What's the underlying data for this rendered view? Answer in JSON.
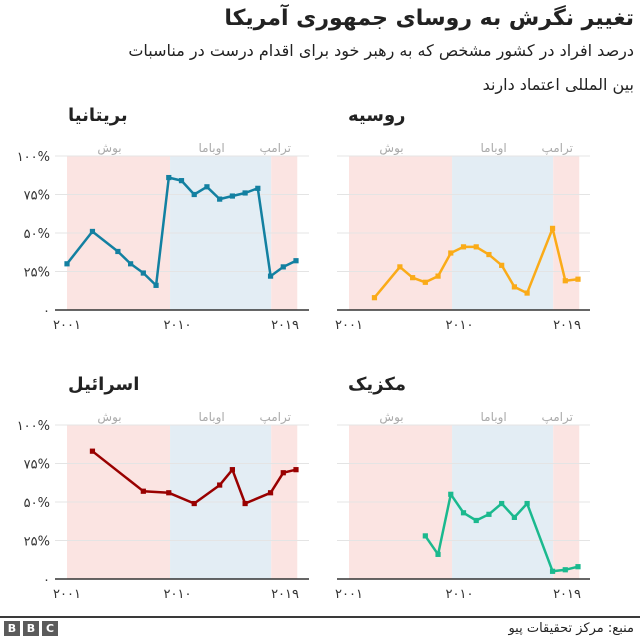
{
  "header": {
    "title": "تغییر نگرش به روسای جمهوری آمریکا",
    "subtitle_line1": "درصد افراد در کشور مشخص که به رهبر خود برای اقدام درست در مناسبات",
    "subtitle_line2": "بین المللی اعتماد دارند"
  },
  "footer": {
    "source": "منبع: مرکز تحقیقات پیو",
    "logo_letters": [
      "B",
      "B",
      "C"
    ]
  },
  "colors": {
    "republican_period": "#fbe4e2",
    "democrat_period": "#e3edf4",
    "gridline": "#e4e4e4",
    "baseline": "#333333",
    "period_label": "#aaaaaa",
    "axis_label": "#333333"
  },
  "chart_data": [
    {
      "type": "line",
      "title": "بریتانیا",
      "xlabel": "",
      "ylabel": "",
      "xlim": [
        2001,
        2019
      ],
      "ylim": [
        0,
        100
      ],
      "grid": true,
      "yticks": [
        0,
        25,
        50,
        75,
        100
      ],
      "ytick_labels": [
        "۰",
        "۲۵%",
        "۵۰%",
        "۷۵%",
        "۱۰۰%"
      ],
      "xticks": [
        2001,
        2010,
        2019
      ],
      "xtick_labels": [
        "۲۰۰۱",
        "۲۰۱۰",
        "۲۰۱۹"
      ],
      "periods": [
        {
          "label": "بوش",
          "start": 2001,
          "end": 2009.1,
          "color": "#fbe4e2"
        },
        {
          "label": "اوباما",
          "start": 2009.1,
          "end": 2017.05,
          "color": "#e3edf4"
        },
        {
          "label": "ترامپ",
          "start": 2017.05,
          "end": 2019.1,
          "color": "#fbe4e2"
        }
      ],
      "series": [
        {
          "name": "بریتانیا",
          "color": "#1380a1",
          "x": [
            2001,
            2003,
            2005,
            2006,
            2007,
            2008,
            2009,
            2010,
            2011,
            2012,
            2013,
            2014,
            2015,
            2016,
            2017,
            2018,
            2019
          ],
          "values": [
            30,
            51,
            38,
            30,
            24,
            16,
            86,
            84,
            75,
            80,
            72,
            74,
            76,
            79,
            22,
            28,
            32
          ]
        }
      ]
    },
    {
      "type": "line",
      "title": "روسیه",
      "xlabel": "",
      "ylabel": "",
      "xlim": [
        2001,
        2019
      ],
      "ylim": [
        0,
        100
      ],
      "grid": true,
      "yticks": [
        0,
        25,
        50,
        75,
        100
      ],
      "ytick_labels": [],
      "xticks": [
        2001,
        2010,
        2019
      ],
      "xtick_labels": [
        "۲۰۰۱",
        "۲۰۱۰",
        "۲۰۱۹"
      ],
      "periods": [
        {
          "label": "بوش",
          "start": 2001,
          "end": 2009.1,
          "color": "#fbe4e2"
        },
        {
          "label": "اوباما",
          "start": 2009.1,
          "end": 2017.05,
          "color": "#e3edf4"
        },
        {
          "label": "ترامپ",
          "start": 2017.05,
          "end": 2019.1,
          "color": "#fbe4e2"
        }
      ],
      "series": [
        {
          "name": "روسیه",
          "color": "#faab18",
          "x": [
            2003,
            2005,
            2006,
            2007,
            2008,
            2009,
            2010,
            2011,
            2012,
            2013,
            2014,
            2015,
            2017,
            2018,
            2019
          ],
          "values": [
            8,
            28,
            21,
            18,
            22,
            37,
            41,
            41,
            36,
            29,
            15,
            11,
            53,
            19,
            20
          ]
        }
      ]
    },
    {
      "type": "line",
      "title": "اسرائیل",
      "xlabel": "",
      "ylabel": "",
      "xlim": [
        2001,
        2019
      ],
      "ylim": [
        0,
        100
      ],
      "grid": true,
      "yticks": [
        0,
        25,
        50,
        75,
        100
      ],
      "ytick_labels": [
        "۰",
        "۲۵%",
        "۵۰%",
        "۷۵%",
        "۱۰۰%"
      ],
      "xticks": [
        2001,
        2010,
        2019
      ],
      "xtick_labels": [
        "۲۰۰۱",
        "۲۰۱۰",
        "۲۰۱۹"
      ],
      "periods": [
        {
          "label": "بوش",
          "start": 2001,
          "end": 2009.1,
          "color": "#fbe4e2"
        },
        {
          "label": "اوباما",
          "start": 2009.1,
          "end": 2017.05,
          "color": "#e3edf4"
        },
        {
          "label": "ترامپ",
          "start": 2017.05,
          "end": 2019.1,
          "color": "#fbe4e2"
        }
      ],
      "series": [
        {
          "name": "اسرائیل",
          "color": "#990000",
          "x": [
            2003,
            2007,
            2009,
            2011,
            2013,
            2014,
            2015,
            2017,
            2018,
            2019
          ],
          "values": [
            83,
            57,
            56,
            49,
            61,
            71,
            49,
            56,
            69,
            71
          ]
        }
      ]
    },
    {
      "type": "line",
      "title": "مکزیک",
      "xlabel": "",
      "ylabel": "",
      "xlim": [
        2001,
        2019
      ],
      "ylim": [
        0,
        100
      ],
      "grid": true,
      "yticks": [
        0,
        25,
        50,
        75,
        100
      ],
      "ytick_labels": [],
      "xticks": [
        2001,
        2010,
        2019
      ],
      "xtick_labels": [
        "۲۰۰۱",
        "۲۰۱۰",
        "۲۰۱۹"
      ],
      "periods": [
        {
          "label": "بوش",
          "start": 2001,
          "end": 2009.1,
          "color": "#fbe4e2"
        },
        {
          "label": "اوباما",
          "start": 2009.1,
          "end": 2017.05,
          "color": "#e3edf4"
        },
        {
          "label": "ترامپ",
          "start": 2017.05,
          "end": 2019.1,
          "color": "#fbe4e2"
        }
      ],
      "series": [
        {
          "name": "مکزیک",
          "color": "#1bb98e",
          "x": [
            2007,
            2008,
            2009,
            2010,
            2011,
            2012,
            2013,
            2014,
            2015,
            2017,
            2018,
            2019
          ],
          "values": [
            28,
            16,
            55,
            43,
            38,
            42,
            49,
            40,
            49,
            5,
            6,
            8
          ]
        }
      ]
    }
  ]
}
